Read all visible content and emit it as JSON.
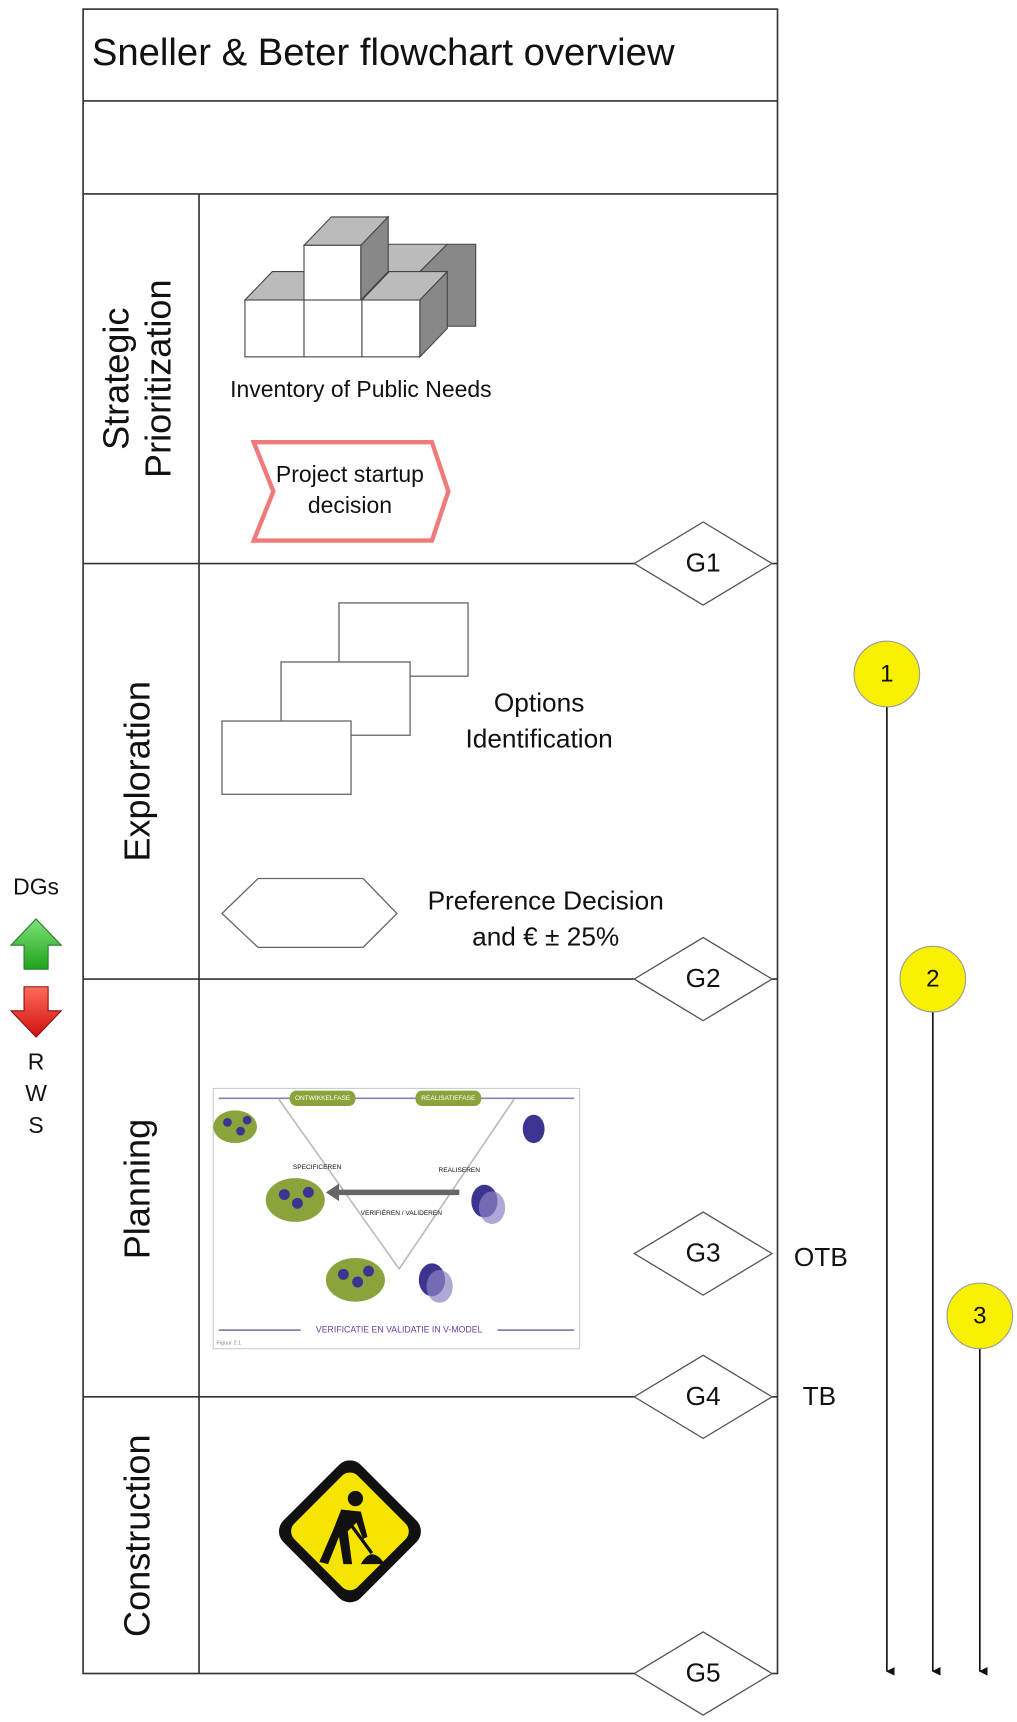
{
  "title": "Sneller & Beter flowchart overview",
  "lanes": [
    {
      "label": [
        "Strategic",
        "Prioritization"
      ]
    },
    {
      "label": [
        "Exploration"
      ]
    },
    {
      "label": [
        "Planning"
      ]
    },
    {
      "label": [
        "Construction"
      ]
    }
  ],
  "items": {
    "inventory": "Inventory of Public Needs",
    "startup": [
      "Project startup",
      "decision"
    ],
    "options": [
      "Options",
      "Identification"
    ],
    "preference": [
      "Preference Decision",
      "and € ± 25%"
    ]
  },
  "gates": [
    "G1",
    "G2",
    "G3",
    "G4",
    "G5"
  ],
  "gate_labels": {
    "otb": "OTB",
    "tb": "TB"
  },
  "milestones": [
    "1",
    "2",
    "3"
  ],
  "side": {
    "top": "DGs",
    "bottom": [
      "R",
      "W",
      "S"
    ]
  },
  "v_model": {
    "left_phase": "ONTWIKKELFASE",
    "right_phase": "REALISATIEFASE",
    "specify": "SPECIFICEREN",
    "realize": "REALISEREN",
    "verify": "VERIFIËREN / VALIDEREN",
    "caption": "VERIFICATIE EN VALIDATIE IN V-MODEL",
    "figure": "Figuur 2.1"
  }
}
